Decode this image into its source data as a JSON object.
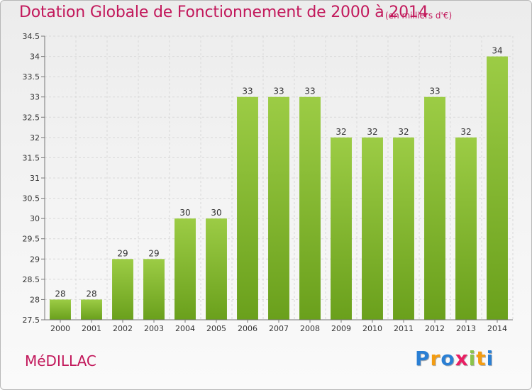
{
  "header": {
    "title": "Dotation Globale de Fonctionnement de 2000 à 2014",
    "subtitle": "(en milliers d'€)"
  },
  "footer": {
    "commune": "MéDILLAC",
    "logo": {
      "letters": [
        {
          "ch": "P",
          "color": "#2a7fd4"
        },
        {
          "ch": "r",
          "color": "#f39c12"
        },
        {
          "ch": "o",
          "color": "#2a7fd4"
        },
        {
          "ch": "x",
          "color": "#e91e63"
        },
        {
          "ch": "i",
          "color": "#8bc34a"
        },
        {
          "ch": "t",
          "color": "#f39c12"
        },
        {
          "ch": "i",
          "color": "#2a7fd4"
        }
      ]
    }
  },
  "chart_data": {
    "type": "bar",
    "categories": [
      "2000",
      "2001",
      "2002",
      "2003",
      "2004",
      "2005",
      "2006",
      "2007",
      "2008",
      "2009",
      "2010",
      "2011",
      "2012",
      "2013",
      "2014"
    ],
    "values": [
      28,
      28,
      29,
      29,
      30,
      30,
      33,
      33,
      33,
      32,
      32,
      32,
      33,
      32,
      34
    ],
    "data_labels": [
      "28",
      "28",
      "29",
      "29",
      "30",
      "30",
      "33",
      "33",
      "33",
      "32",
      "32",
      "32",
      "33",
      "32",
      "34"
    ],
    "title": "Dotation Globale de Fonctionnement de 2000 à 2014",
    "subtitle": "(en milliers d'€)",
    "xlabel": "",
    "ylabel": "",
    "ylim": [
      27.5,
      34.5
    ],
    "yticks": [
      27.5,
      28,
      28.5,
      29,
      29.5,
      30,
      30.5,
      31,
      31.5,
      32,
      32.5,
      33,
      33.5,
      34,
      34.5
    ],
    "ytick_labels": [
      "27.5",
      "28",
      "28.5",
      "29",
      "29.5",
      "30",
      "30.5",
      "31",
      "31.5",
      "32",
      "32.5",
      "33",
      "33.5",
      "34",
      "34.5"
    ],
    "grid": true,
    "legend": "none",
    "colors": {
      "bar_top": "#9ccc45",
      "bar_bottom": "#6aa01c",
      "grid": "#d9d9d9",
      "axis": "#777777",
      "label": "#333333"
    }
  }
}
